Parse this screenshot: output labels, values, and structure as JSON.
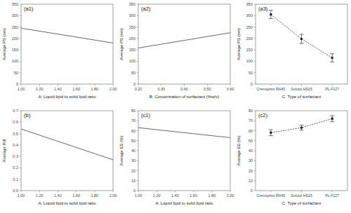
{
  "chart_data": [
    {
      "type": "line",
      "title": "(a1)",
      "x_label": "A: Liquid lipid to solid lipid ratio",
      "y_label": "Average PS (nm)",
      "x": [
        1.0,
        2.0
      ],
      "values": [
        245,
        180
      ],
      "color": "#666666",
      "xlim": [
        1.0,
        2.0
      ],
      "xticks": [
        {
          "value": 1.0,
          "label": "1.00"
        },
        {
          "value": 1.2,
          "label": "1.20"
        },
        {
          "value": 1.4,
          "label": "1.40"
        },
        {
          "value": 1.6,
          "label": "1.60"
        },
        {
          "value": 1.8,
          "label": "1.80"
        },
        {
          "value": 2.0,
          "label": "2.00"
        }
      ],
      "ylim": [
        0,
        350
      ],
      "yticks": [
        0,
        50,
        100,
        150,
        200,
        250,
        300,
        350
      ]
    },
    {
      "type": "line",
      "title": "(a2)",
      "x_label": "B: Concentration of surfactant (%w/v)",
      "y_label": "Average PS (nm)",
      "x": [
        0.2,
        0.6
      ],
      "values": [
        158,
        225
      ],
      "color": "#666666",
      "xlim": [
        0.2,
        0.6
      ],
      "xticks": [
        {
          "value": 0.2,
          "label": "0.20"
        },
        {
          "value": 0.3,
          "label": "0.30"
        },
        {
          "value": 0.4,
          "label": "0.40"
        },
        {
          "value": 0.5,
          "label": "0.50"
        },
        {
          "value": 0.6,
          "label": "0.60"
        }
      ],
      "ylim": [
        0,
        350
      ],
      "yticks": [
        0,
        50,
        100,
        150,
        200,
        250,
        300,
        350
      ]
    },
    {
      "type": "line",
      "title": "(a3)",
      "x_label": "C: Type of surfactant",
      "y_label": "Average PS (nm)",
      "categories": [
        "Cremophor RH40",
        "Solutol HS15",
        "PL-F127"
      ],
      "values": [
        305,
        198,
        115
      ],
      "errors": [
        18,
        20,
        18
      ],
      "color": "#333333",
      "marker": "circle",
      "line_style": "dashed",
      "ylim": [
        0,
        350
      ],
      "yticks": [
        0,
        50,
        100,
        150,
        200,
        250,
        300,
        350
      ]
    },
    {
      "type": "line",
      "title": "(b)",
      "x_label": "A: Liquid lipid to solid lipid ratio",
      "y_label": "Average PdI",
      "x": [
        1.0,
        2.0
      ],
      "values": [
        0.54,
        0.27
      ],
      "color": "#666666",
      "xlim": [
        1.0,
        2.0
      ],
      "xticks": [
        {
          "value": 1.0,
          "label": "1.00"
        },
        {
          "value": 1.2,
          "label": "1.20"
        },
        {
          "value": 1.4,
          "label": "1.40"
        },
        {
          "value": 1.6,
          "label": "1.60"
        },
        {
          "value": 1.8,
          "label": "1.80"
        },
        {
          "value": 2.0,
          "label": "2.00"
        }
      ],
      "ylim": [
        0,
        0.7
      ],
      "yticks": [
        {
          "value": 0,
          "label": "0.0"
        },
        0.1,
        0.2,
        0.3,
        0.4,
        0.5,
        0.6,
        0.7
      ]
    },
    {
      "type": "line",
      "title": "(c1)",
      "x_label": "A: Liquid lipid to solid lipid ratio",
      "y_label": "Average EE (%)",
      "x": [
        1.0,
        2.0
      ],
      "values": [
        63,
        53
      ],
      "color": "#666666",
      "xlim": [
        1.0,
        2.0
      ],
      "xticks": [
        {
          "value": 1.0,
          "label": "1.00"
        },
        {
          "value": 1.2,
          "label": "1.20"
        },
        {
          "value": 1.4,
          "label": "1.40"
        },
        {
          "value": 1.6,
          "label": "1.60"
        },
        {
          "value": 1.8,
          "label": "1.80"
        },
        {
          "value": 2.0,
          "label": "2.00"
        }
      ],
      "ylim": [
        0,
        80
      ],
      "yticks": [
        0,
        10,
        20,
        30,
        40,
        50,
        60,
        70,
        80
      ]
    },
    {
      "type": "line",
      "title": "(c2)",
      "x_label": "C: Type of surfactant",
      "y_label": "Average EE (%)",
      "categories": [
        "Cremophor RH40",
        "Solutol HS15",
        "PL-F127"
      ],
      "values": [
        58,
        63,
        72
      ],
      "errors": [
        3,
        2.5,
        3
      ],
      "color": "#333333",
      "marker": "circle",
      "line_style": "dashed",
      "ylim": [
        0,
        80
      ],
      "yticks": [
        0,
        10,
        20,
        30,
        40,
        50,
        60,
        70,
        80
      ]
    }
  ]
}
